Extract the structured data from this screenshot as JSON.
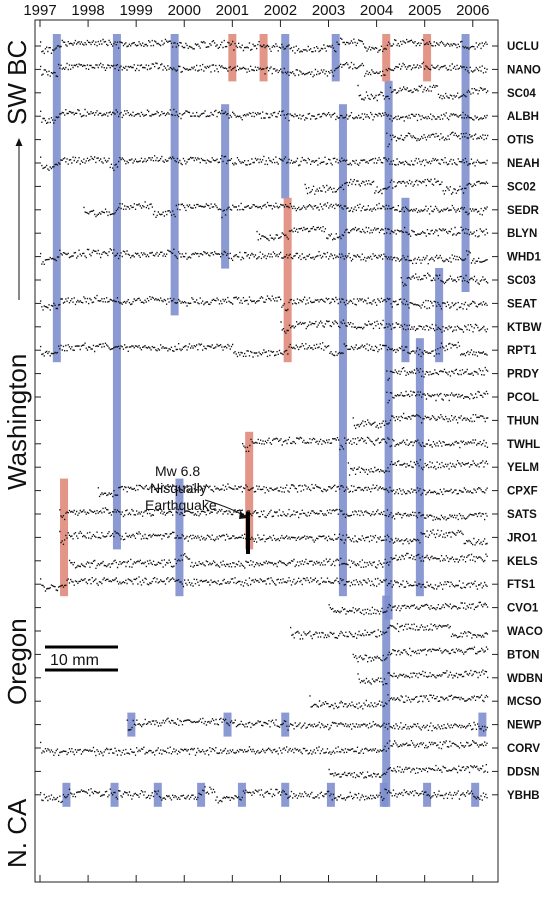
{
  "chart_data": {
    "type": "scatter",
    "title": "",
    "xlabel": "",
    "ylabel": "",
    "x_ticks": [
      "1997",
      "1998",
      "1999",
      "2000",
      "2001",
      "2002",
      "2003",
      "2004",
      "2005",
      "2006"
    ],
    "xlim": [
      1997,
      2006.4
    ],
    "stations": [
      {
        "name": "UCLU",
        "start": 1997.0,
        "end": 2006.3,
        "trend": 0.5
      },
      {
        "name": "NANO",
        "start": 1997.0,
        "end": 2006.3,
        "trend": 0.5
      },
      {
        "name": "SC04",
        "start": 2003.6,
        "end": 2006.3,
        "trend": 0.6
      },
      {
        "name": "ALBH",
        "start": 1997.0,
        "end": 2006.3,
        "trend": 0.6
      },
      {
        "name": "OTIS",
        "start": 2004.2,
        "end": 2006.3,
        "trend": 0.6
      },
      {
        "name": "NEAH",
        "start": 1997.0,
        "end": 2006.3,
        "trend": 0.7
      },
      {
        "name": "SC02",
        "start": 2002.5,
        "end": 2006.3,
        "trend": 0.7
      },
      {
        "name": "SEDR",
        "start": 1997.9,
        "end": 2006.3,
        "trend": 0.7
      },
      {
        "name": "BLYN",
        "start": 2001.5,
        "end": 2006.3,
        "trend": 0.7
      },
      {
        "name": "WHD1",
        "start": 1997.0,
        "end": 2006.3,
        "trend": 0.6
      },
      {
        "name": "SC03",
        "start": 2004.5,
        "end": 2006.3,
        "trend": 0.6
      },
      {
        "name": "SEAT",
        "start": 1997.0,
        "end": 2006.3,
        "trend": 0.6
      },
      {
        "name": "KTBW",
        "start": 2002.0,
        "end": 2006.3,
        "trend": 0.6
      },
      {
        "name": "RPT1",
        "start": 1997.0,
        "end": 2006.3,
        "trend": 0.5
      },
      {
        "name": "PRDY",
        "start": 2004.2,
        "end": 2006.3,
        "trend": 0.5
      },
      {
        "name": "PCOL",
        "start": 2004.2,
        "end": 2006.3,
        "trend": 0.5
      },
      {
        "name": "THUN",
        "start": 2003.5,
        "end": 2006.3,
        "trend": 0.5
      },
      {
        "name": "TWHL",
        "start": 2001.2,
        "end": 2006.3,
        "trend": 0.5
      },
      {
        "name": "YELM",
        "start": 2003.4,
        "end": 2006.3,
        "trend": 0.5
      },
      {
        "name": "CPXF",
        "start": 1998.2,
        "end": 2006.3,
        "trend": 0.5
      },
      {
        "name": "SATS",
        "start": 1997.4,
        "end": 2006.3,
        "trend": 0.5
      },
      {
        "name": "JRO1",
        "start": 1997.4,
        "end": 2006.3,
        "trend": 0.4
      },
      {
        "name": "KELS",
        "start": 1997.6,
        "end": 2006.3,
        "trend": 0.4
      },
      {
        "name": "FTS1",
        "start": 1997.0,
        "end": 2006.3,
        "trend": 0.3
      },
      {
        "name": "CVO1",
        "start": 2003.0,
        "end": 2006.3,
        "trend": 0.3
      },
      {
        "name": "WACO",
        "start": 2002.2,
        "end": 2006.3,
        "trend": 0.3
      },
      {
        "name": "BTON",
        "start": 2003.5,
        "end": 2006.3,
        "trend": 0.3
      },
      {
        "name": "WDBN",
        "start": 2003.6,
        "end": 2006.3,
        "trend": 0.3
      },
      {
        "name": "MCSO",
        "start": 2002.6,
        "end": 2006.3,
        "trend": 0.2
      },
      {
        "name": "NEWP",
        "start": 1998.8,
        "end": 2006.3,
        "trend": 0.2
      },
      {
        "name": "CORV",
        "start": 1997.0,
        "end": 2006.3,
        "trend": 0.1
      },
      {
        "name": "DDSN",
        "start": 2003.0,
        "end": 2006.3,
        "trend": 0.1
      },
      {
        "name": "YBHB",
        "start": 1997.0,
        "end": 2006.3,
        "trend": 0.1
      }
    ],
    "slow_slip_events": [
      {
        "time": 1997.35,
        "top": "UCLU",
        "bottom": "RPT1",
        "color": "#7f8fcf"
      },
      {
        "time": 1998.6,
        "top": "UCLU",
        "bottom": "JRO1",
        "color": "#7f8fcf"
      },
      {
        "time": 1999.8,
        "top": "UCLU",
        "bottom": "SEAT",
        "color": "#7f8fcf"
      },
      {
        "time": 2000.85,
        "top": "ALBH",
        "bottom": "WHD1",
        "color": "#7f8fcf"
      },
      {
        "time": 2002.1,
        "top": "UCLU",
        "bottom": "SC02",
        "color": "#7f8fcf"
      },
      {
        "time": 2003.15,
        "top": "UCLU",
        "bottom": "NANO",
        "color": "#7f8fcf"
      },
      {
        "time": 2003.3,
        "top": "ALBH",
        "bottom": "FTS1",
        "color": "#7f8fcf"
      },
      {
        "time": 2004.25,
        "top": "SC04",
        "bottom": "CVO1",
        "color": "#7f8fcf"
      },
      {
        "time": 2004.6,
        "top": "SEDR",
        "bottom": "RPT1",
        "color": "#7f8fcf"
      },
      {
        "time": 2005.3,
        "top": "SC03",
        "bottom": "RPT1",
        "color": "#7f8fcf"
      },
      {
        "time": 2004.9,
        "top": "RPT1",
        "bottom": "FTS1",
        "color": "#7f8fcf"
      },
      {
        "time": 2005.85,
        "top": "UCLU",
        "bottom": "SC03",
        "color": "#7f8fcf"
      },
      {
        "time": 1999.9,
        "top": "CPXF",
        "bottom": "FTS1",
        "color": "#7f8fcf"
      },
      {
        "time": 2004.2,
        "top": "CVO1",
        "bottom": "YBHB",
        "color": "#7f8fcf"
      },
      {
        "time": 2001.0,
        "top": "UCLU",
        "bottom": "NANO",
        "color": "#e08a7a"
      },
      {
        "time": 2001.65,
        "top": "UCLU",
        "bottom": "NANO",
        "color": "#e08a7a"
      },
      {
        "time": 2004.2,
        "top": "UCLU",
        "bottom": "NANO",
        "color": "#e08a7a"
      },
      {
        "time": 2005.05,
        "top": "UCLU",
        "bottom": "NANO",
        "color": "#e08a7a"
      },
      {
        "time": 2002.15,
        "top": "SEDR",
        "bottom": "RPT1",
        "color": "#e08a7a"
      },
      {
        "time": 2001.35,
        "top": "TWHL",
        "bottom": "JRO1",
        "color": "#e08a7a"
      },
      {
        "time": 1997.5,
        "top": "CPXF",
        "bottom": "FTS1",
        "color": "#e08a7a"
      },
      {
        "time": 1998.9,
        "top": "NEWP",
        "bottom": "NEWP",
        "color": "#7f8fcf"
      },
      {
        "time": 2000.9,
        "top": "NEWP",
        "bottom": "NEWP",
        "color": "#7f8fcf"
      },
      {
        "time": 2002.1,
        "top": "NEWP",
        "bottom": "NEWP",
        "color": "#7f8fcf"
      },
      {
        "time": 2006.2,
        "top": "NEWP",
        "bottom": "NEWP",
        "color": "#7f8fcf"
      },
      {
        "time": 1997.55,
        "top": "YBHB",
        "bottom": "YBHB",
        "color": "#7f8fcf"
      },
      {
        "time": 1998.55,
        "top": "YBHB",
        "bottom": "YBHB",
        "color": "#7f8fcf"
      },
      {
        "time": 1999.45,
        "top": "YBHB",
        "bottom": "YBHB",
        "color": "#7f8fcf"
      },
      {
        "time": 2000.35,
        "top": "YBHB",
        "bottom": "YBHB",
        "color": "#7f8fcf"
      },
      {
        "time": 2001.2,
        "top": "YBHB",
        "bottom": "YBHB",
        "color": "#7f8fcf"
      },
      {
        "time": 2002.1,
        "top": "YBHB",
        "bottom": "YBHB",
        "color": "#7f8fcf"
      },
      {
        "time": 2003.05,
        "top": "YBHB",
        "bottom": "YBHB",
        "color": "#7f8fcf"
      },
      {
        "time": 2004.15,
        "top": "YBHB",
        "bottom": "YBHB",
        "color": "#7f8fcf"
      },
      {
        "time": 2005.05,
        "top": "YBHB",
        "bottom": "YBHB",
        "color": "#7f8fcf"
      },
      {
        "time": 2006.05,
        "top": "YBHB",
        "bottom": "YBHB",
        "color": "#7f8fcf"
      }
    ],
    "region_labels": [
      "SW BC",
      "Washington",
      "Oregon",
      "N. CA"
    ],
    "annotation": {
      "text_lines": [
        "Mw 6.8",
        "Nisqually",
        "Earthquake"
      ],
      "time": 2001.2,
      "station": "SATS"
    },
    "scale_bar_label": "10 mm",
    "grid": false,
    "legend": "none"
  }
}
